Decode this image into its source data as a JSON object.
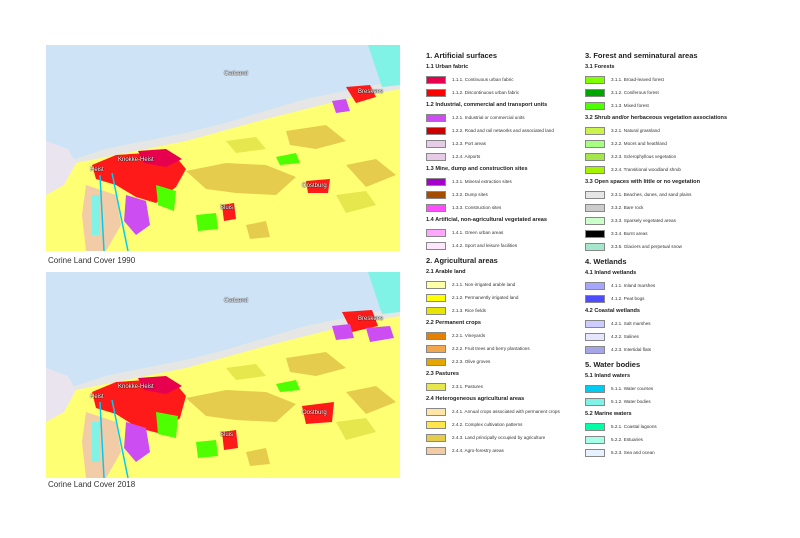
{
  "maps": [
    {
      "caption": "Corine Land Cover  1990",
      "places": [
        "Knokke-Heist",
        "Heist",
        "Breskens",
        "Cadzand",
        "Sluis",
        "Oostburg"
      ]
    },
    {
      "caption": "Corine Land Cover  2018",
      "places": [
        "Knokke-Heist",
        "Heist",
        "Breskens",
        "Cadzand",
        "Sluis",
        "Oostburg"
      ]
    }
  ],
  "legend": {
    "col1": [
      {
        "title": "1. Artificial surfaces",
        "groups": [
          {
            "title": "1.1 Urban fabric",
            "items": [
              {
                "label": "1.1.1. Continuous urban fabric",
                "color": "#e6004d"
              },
              {
                "label": "1.1.2. Discontinuous urban fabric",
                "color": "#ff0000"
              }
            ]
          },
          {
            "title": "1.2 Industrial, commercial and transport units",
            "items": [
              {
                "label": "1.2.1. Industrial or commercial units",
                "color": "#cc4df2"
              },
              {
                "label": "1.2.2. Road and rail networks and associated land",
                "color": "#cc0000"
              },
              {
                "label": "1.2.3. Port areas",
                "color": "#e6cce6"
              },
              {
                "label": "1.2.4. Airports",
                "color": "#e6cce6"
              }
            ]
          },
          {
            "title": "1.3 Mine, dump and construction sites",
            "items": [
              {
                "label": "1.3.1. Mineral extraction sites",
                "color": "#a600cc"
              },
              {
                "label": "1.3.2. Dump sites",
                "color": "#a64d00"
              },
              {
                "label": "1.3.3. Construction sites",
                "color": "#ff4dff"
              }
            ]
          },
          {
            "title": "1.4 Artificial, non-agricultural vegetated areas",
            "items": [
              {
                "label": "1.4.1. Green urban areas",
                "color": "#ffa6ff"
              },
              {
                "label": "1.4.2. Sport and leisure facilities",
                "color": "#ffe6ff"
              }
            ]
          }
        ]
      },
      {
        "title": "2. Agricultural areas",
        "groups": [
          {
            "title": "2.1 Arable land",
            "items": [
              {
                "label": "2.1.1. Non-irrigated arable land",
                "color": "#ffffa8"
              },
              {
                "label": "2.1.2. Permanently irrigated land",
                "color": "#ffff00"
              },
              {
                "label": "2.1.3. Rice fields",
                "color": "#e6e600"
              }
            ]
          },
          {
            "title": "2.2 Permanent crops",
            "items": [
              {
                "label": "2.2.1. Vineyards",
                "color": "#e68000"
              },
              {
                "label": "2.2.2. Fruit trees and berry plantations",
                "color": "#f2a64d"
              },
              {
                "label": "2.2.3. Olive groves",
                "color": "#e6a600"
              }
            ]
          },
          {
            "title": "2.3 Pastures",
            "items": [
              {
                "label": "2.3.1. Pastures",
                "color": "#e6e64d"
              }
            ]
          },
          {
            "title": "2.4 Heterogeneous agricultural areas",
            "items": [
              {
                "label": "2.4.1. Annual crops associated with permanent crops",
                "color": "#ffe6a6"
              },
              {
                "label": "2.4.2. Complex cultivation patterns",
                "color": "#ffe64d"
              },
              {
                "label": "2.4.3. Land principally occupied by agriculture",
                "color": "#e6cc4d"
              },
              {
                "label": "2.4.4. Agro-forestry areas",
                "color": "#f2cca6"
              }
            ]
          }
        ]
      }
    ],
    "col2": [
      {
        "title": "3. Forest and seminatural areas",
        "groups": [
          {
            "title": "3.1 Forests",
            "items": [
              {
                "label": "3.1.1. Broad-leaved forest",
                "color": "#80ff00"
              },
              {
                "label": "3.1.2. Coniferous forest",
                "color": "#00a600"
              },
              {
                "label": "3.1.3. Mixed forest",
                "color": "#4dff00"
              }
            ]
          },
          {
            "title": "3.2 Shrub and/or herbaceous vegetation associations",
            "items": [
              {
                "label": "3.2.1. Natural grassland",
                "color": "#ccf24d"
              },
              {
                "label": "3.2.2. Moors and heathland",
                "color": "#a6ff80"
              },
              {
                "label": "3.2.3. Sclerophyllous vegetation",
                "color": "#a6e64d"
              },
              {
                "label": "3.2.4. Transitional  woodland shrub",
                "color": "#a6f200"
              }
            ]
          },
          {
            "title": "3.3 Open spaces with little or no vegetation",
            "items": [
              {
                "label": "3.3.1. Beaches, dunes, and sand plains",
                "color": "#e6e6e6"
              },
              {
                "label": "3.3.2. Bare rock",
                "color": "#cccccc"
              },
              {
                "label": "3.3.3. Sparsely vegetated areas",
                "color": "#ccffcc"
              },
              {
                "label": "3.3.4. Burnt areas",
                "color": "#000000"
              },
              {
                "label": "3.3.5. Glaciers and perpetual snow",
                "color": "#a6e6cc"
              }
            ]
          }
        ]
      },
      {
        "title": "4. Wetlands",
        "groups": [
          {
            "title": "4.1 Inland wetlands",
            "items": [
              {
                "label": "4.1.1. Inland marshes",
                "color": "#a6a6ff"
              },
              {
                "label": "4.1.2. Peat bogs",
                "color": "#4d4dff"
              }
            ]
          },
          {
            "title": "4.2 Coastal wetlands",
            "items": [
              {
                "label": "4.2.1. Salt marshes",
                "color": "#ccccff"
              },
              {
                "label": "4.2.2. Salines",
                "color": "#e6e6ff"
              },
              {
                "label": "4.2.3. Intertidal flats",
                "color": "#a6a6e6"
              }
            ]
          }
        ]
      },
      {
        "title": "5. Water bodies",
        "groups": [
          {
            "title": "5.1 Inland waters",
            "items": [
              {
                "label": "5.1.1. Water courses",
                "color": "#00ccf2"
              },
              {
                "label": "5.1.2. Water bodies",
                "color": "#80f2e6"
              }
            ]
          },
          {
            "title": "5.2 Marine waters",
            "items": [
              {
                "label": "5.2.1. Coastal lagoons",
                "color": "#00ffa6"
              },
              {
                "label": "5.2.2. Estuaries",
                "color": "#a6ffe6"
              },
              {
                "label": "5.2.3. Sea and ocean",
                "color": "#e6f2ff"
              }
            ]
          }
        ]
      }
    ]
  }
}
